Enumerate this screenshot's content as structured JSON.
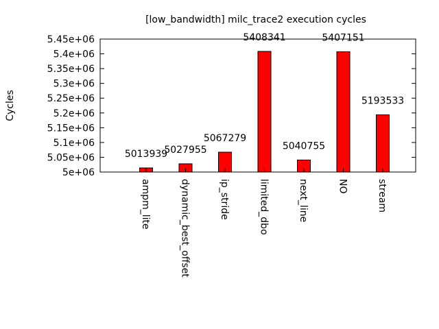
{
  "chart_data": {
    "type": "bar",
    "title": "[low_bandwidth] milc_trace2 execution cycles",
    "xlabel": "",
    "ylabel": "Cycles",
    "categories": [
      "ampm_lite",
      "dynamic_best_offset",
      "ip_stride",
      "limited_dbo",
      "next_line",
      "NO",
      "stream"
    ],
    "values": [
      5013939,
      5027955,
      5067279,
      5408341,
      5040755,
      5407151,
      5193533
    ],
    "data_labels": [
      "5013939",
      "5027955",
      "5067279",
      "5408341",
      "5040755",
      "5407151",
      "5193533"
    ],
    "ylim": [
      5000000,
      5450000
    ],
    "yticks": [
      5000000,
      5050000,
      5100000,
      5150000,
      5200000,
      5250000,
      5300000,
      5350000,
      5400000,
      5450000
    ],
    "ytick_labels": [
      "5e+06",
      "5.05e+06",
      "5.1e+06",
      "5.15e+06",
      "5.2e+06",
      "5.25e+06",
      "5.3e+06",
      "5.35e+06",
      "5.4e+06",
      "5.45e+06"
    ],
    "bar_color": "#ff0000",
    "grid": false,
    "legend": "none"
  }
}
